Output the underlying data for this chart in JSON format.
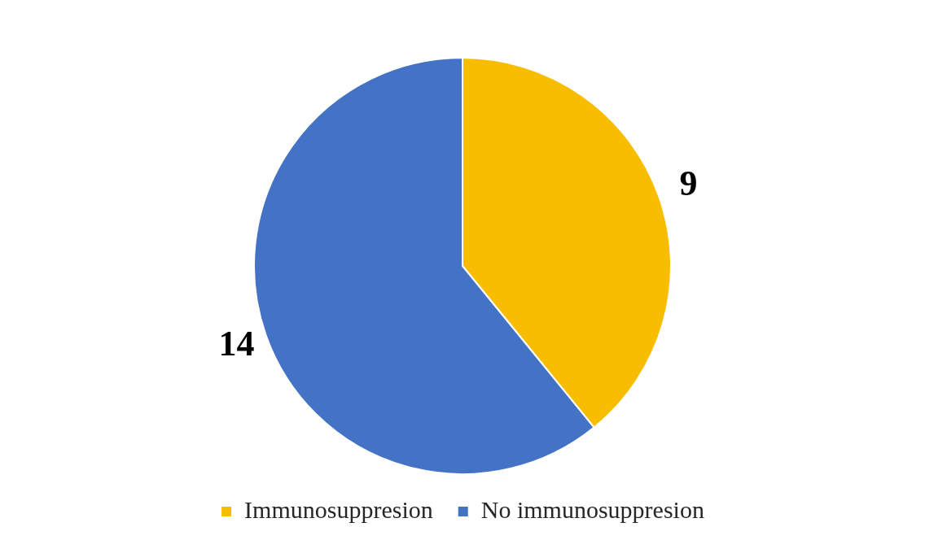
{
  "chart_data": {
    "type": "pie",
    "categories": [
      "Immunosuppresion",
      "No immunosuppresion"
    ],
    "values": [
      9,
      14
    ],
    "colors": [
      "#f9bd00",
      "#4472c4"
    ],
    "data_labels": true,
    "legend": "bottom"
  }
}
